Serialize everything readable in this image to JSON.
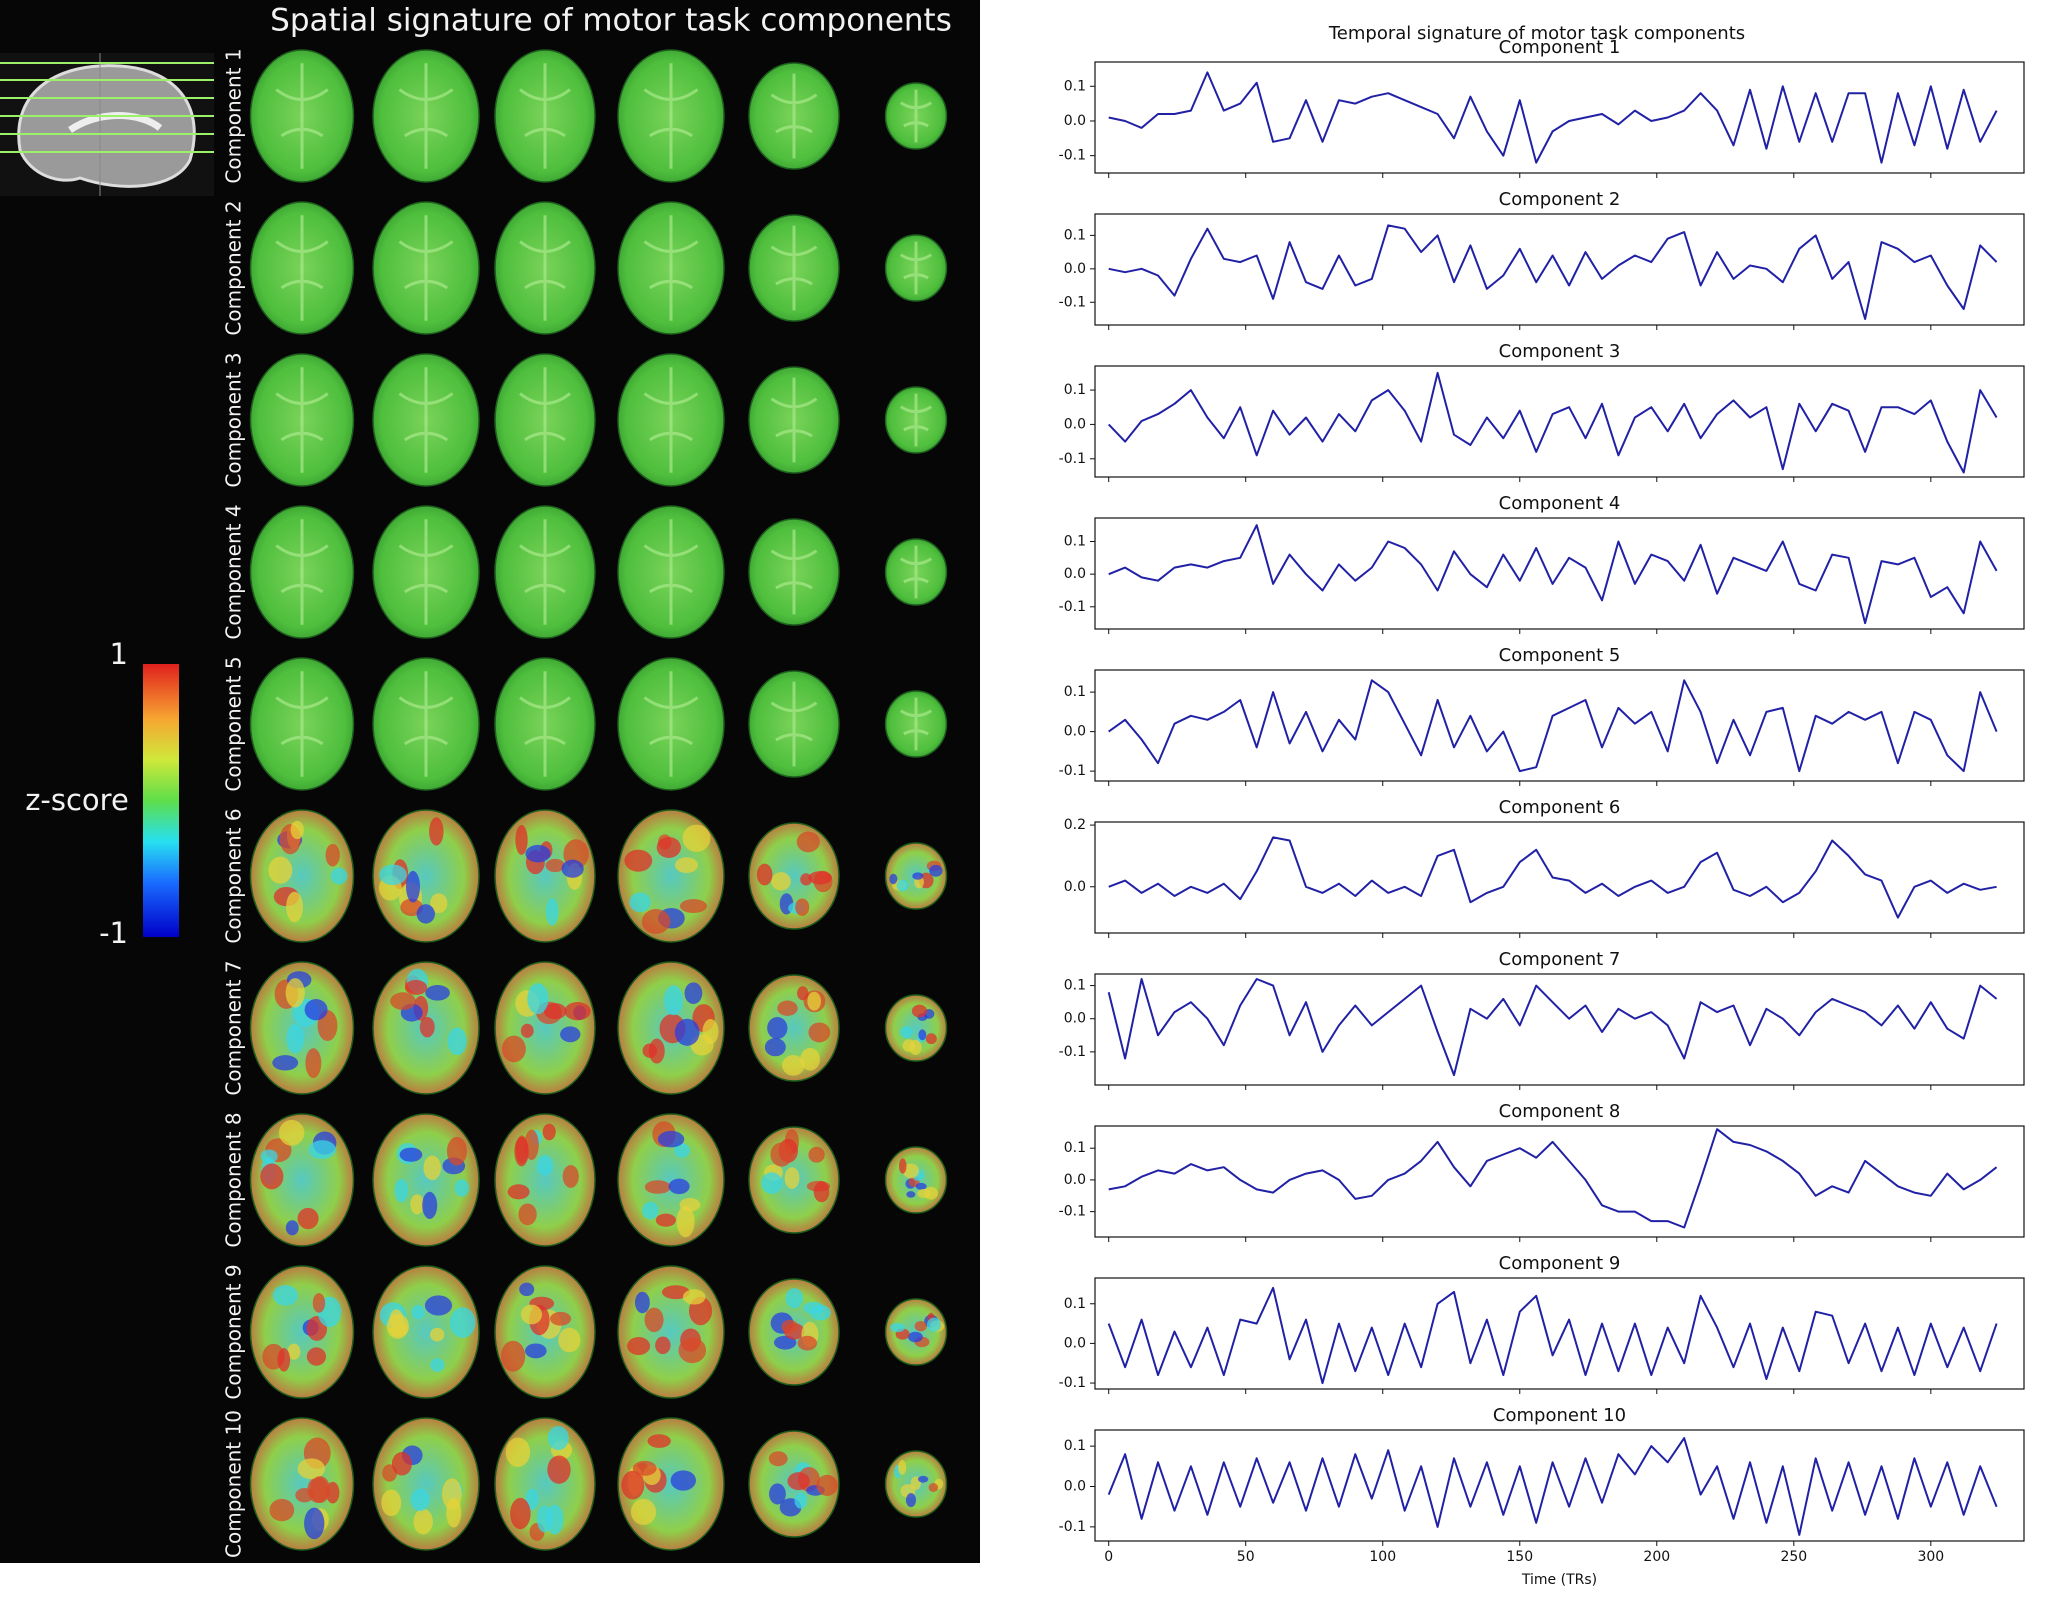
{
  "chart_data": [
    {
      "type": "image-grid",
      "title": "Spatial signature of motor task components",
      "row_labels": [
        "Component 1",
        "Component 2",
        "Component 3",
        "Component 4",
        "Component 5",
        "Component 6",
        "Component 7",
        "Component 8",
        "Component 9",
        "Component 10"
      ],
      "colorbar": {
        "label": "z-score",
        "lim": [
          -1,
          1
        ],
        "ticks": [
          1,
          -1
        ]
      }
    },
    {
      "type": "small-multiples",
      "title": "Temporal signature of motor task components",
      "xlabel": "Time (TRs)",
      "xlim": [
        -5,
        334
      ],
      "xticks": [
        0,
        50,
        100,
        150,
        200,
        250,
        300
      ],
      "x": [
        0,
        6,
        12,
        18,
        24,
        30,
        36,
        42,
        48,
        54,
        60,
        66,
        72,
        78,
        84,
        90,
        96,
        102,
        108,
        114,
        120,
        126,
        132,
        138,
        144,
        150,
        156,
        162,
        168,
        174,
        180,
        186,
        192,
        198,
        204,
        210,
        216,
        222,
        228,
        234,
        240,
        246,
        252,
        258,
        264,
        270,
        276,
        282,
        288,
        294,
        300,
        306,
        312,
        318,
        324
      ],
      "panels": [
        {
          "type": "line",
          "title": "Component 1",
          "color": "#2121a6",
          "ylim": [
            -0.15,
            0.17
          ],
          "yticks": [
            0.1,
            {
              "value": 0,
              "label": "0.0"
            },
            -0.1
          ],
          "values": [
            0.01,
            0.0,
            -0.02,
            0.02,
            0.02,
            0.03,
            0.14,
            0.03,
            0.05,
            0.11,
            -0.06,
            -0.05,
            0.06,
            -0.06,
            0.06,
            0.05,
            0.07,
            0.08,
            0.06,
            0.04,
            0.02,
            -0.05,
            0.07,
            -0.03,
            -0.1,
            0.06,
            -0.12,
            -0.03,
            0.0,
            0.01,
            0.02,
            -0.01,
            0.03,
            0.0,
            0.01,
            0.03,
            0.08,
            0.03,
            -0.07,
            0.09,
            -0.08,
            0.1,
            -0.06,
            0.08,
            -0.06,
            0.08,
            0.08,
            -0.12,
            0.08,
            -0.07,
            0.1,
            -0.08,
            0.09,
            -0.06,
            0.03
          ]
        },
        {
          "type": "line",
          "title": "Component 2",
          "color": "#2121a6",
          "ylim": [
            -0.168,
            0.164
          ],
          "yticks": [
            0.1,
            {
              "value": 0,
              "label": "0.0"
            },
            -0.1
          ],
          "values": [
            0.0,
            -0.01,
            0.0,
            -0.02,
            -0.08,
            0.03,
            0.12,
            0.03,
            0.02,
            0.04,
            -0.09,
            0.08,
            -0.04,
            -0.06,
            0.04,
            -0.05,
            -0.03,
            0.13,
            0.12,
            0.05,
            0.1,
            -0.04,
            0.07,
            -0.06,
            -0.02,
            0.06,
            -0.04,
            0.04,
            -0.05,
            0.05,
            -0.03,
            0.01,
            0.04,
            0.02,
            0.09,
            0.11,
            -0.05,
            0.05,
            -0.03,
            0.01,
            0.0,
            -0.04,
            0.06,
            0.1,
            -0.03,
            0.02,
            -0.15,
            0.08,
            0.06,
            0.02,
            0.04,
            -0.05,
            -0.12,
            0.07,
            0.02
          ]
        },
        {
          "type": "line",
          "title": "Component 3",
          "color": "#2121a6",
          "ylim": [
            -0.153,
            0.17
          ],
          "yticks": [
            0.1,
            {
              "value": 0,
              "label": "0.0"
            },
            -0.1
          ],
          "values": [
            0.0,
            -0.05,
            0.01,
            0.03,
            0.06,
            0.1,
            0.02,
            -0.04,
            0.05,
            -0.09,
            0.04,
            -0.03,
            0.02,
            -0.05,
            0.03,
            -0.02,
            0.07,
            0.1,
            0.04,
            -0.05,
            0.15,
            -0.03,
            -0.06,
            0.02,
            -0.04,
            0.04,
            -0.08,
            0.03,
            0.05,
            -0.04,
            0.06,
            -0.09,
            0.02,
            0.05,
            -0.02,
            0.06,
            -0.04,
            0.03,
            0.07,
            0.02,
            0.05,
            -0.13,
            0.06,
            -0.02,
            0.06,
            0.04,
            -0.08,
            0.05,
            0.05,
            0.03,
            0.07,
            -0.05,
            -0.14,
            0.1,
            0.02
          ]
        },
        {
          "type": "line",
          "title": "Component 4",
          "color": "#2121a6",
          "ylim": [
            -0.168,
            0.172
          ],
          "yticks": [
            0.1,
            {
              "value": 0,
              "label": "0.0"
            },
            -0.1
          ],
          "values": [
            0.0,
            0.02,
            -0.01,
            -0.02,
            0.02,
            0.03,
            0.02,
            0.04,
            0.05,
            0.15,
            -0.03,
            0.06,
            0.0,
            -0.05,
            0.03,
            -0.02,
            0.02,
            0.1,
            0.08,
            0.03,
            -0.05,
            0.07,
            0.0,
            -0.04,
            0.06,
            -0.02,
            0.08,
            -0.03,
            0.05,
            0.02,
            -0.08,
            0.1,
            -0.03,
            0.06,
            0.04,
            -0.02,
            0.09,
            -0.06,
            0.05,
            0.03,
            0.01,
            0.1,
            -0.03,
            -0.05,
            0.06,
            0.05,
            -0.15,
            0.04,
            0.03,
            0.05,
            -0.07,
            -0.04,
            -0.12,
            0.1,
            0.01
          ]
        },
        {
          "type": "line",
          "title": "Component 5",
          "color": "#2121a6",
          "ylim": [
            -0.125,
            0.156
          ],
          "yticks": [
            0.1,
            {
              "value": 0,
              "label": "0.0"
            },
            -0.1
          ],
          "values": [
            0.0,
            0.03,
            -0.02,
            -0.08,
            0.02,
            0.04,
            0.03,
            0.05,
            0.08,
            -0.04,
            0.1,
            -0.03,
            0.05,
            -0.05,
            0.03,
            -0.02,
            0.13,
            0.1,
            0.02,
            -0.06,
            0.08,
            -0.04,
            0.04,
            -0.05,
            0.0,
            -0.1,
            -0.09,
            0.04,
            0.06,
            0.08,
            -0.04,
            0.06,
            0.02,
            0.05,
            -0.05,
            0.13,
            0.05,
            -0.08,
            0.03,
            -0.06,
            0.05,
            0.06,
            -0.1,
            0.04,
            0.02,
            0.05,
            0.03,
            0.05,
            -0.08,
            0.05,
            0.03,
            -0.06,
            -0.1,
            0.1,
            0.0
          ]
        },
        {
          "type": "line",
          "title": "Component 6",
          "color": "#2121a6",
          "ylim": [
            -0.15,
            0.21
          ],
          "yticks": [
            0.2,
            {
              "value": 0,
              "label": "0.0"
            }
          ],
          "values": [
            0.0,
            0.02,
            -0.02,
            0.01,
            -0.03,
            0.0,
            -0.02,
            0.01,
            -0.04,
            0.05,
            0.16,
            0.15,
            0.0,
            -0.02,
            0.01,
            -0.03,
            0.02,
            -0.02,
            0.0,
            -0.03,
            0.1,
            0.12,
            -0.05,
            -0.02,
            0.0,
            0.08,
            0.12,
            0.03,
            0.02,
            -0.02,
            0.01,
            -0.03,
            0.0,
            0.02,
            -0.02,
            0.0,
            0.08,
            0.11,
            -0.01,
            -0.03,
            0.0,
            -0.05,
            -0.02,
            0.05,
            0.15,
            0.1,
            0.04,
            0.02,
            -0.1,
            0.0,
            0.02,
            -0.02,
            0.01,
            -0.01,
            0.0
          ]
        },
        {
          "type": "line",
          "title": "Component 7",
          "color": "#2121a6",
          "ylim": [
            -0.2,
            0.135
          ],
          "yticks": [
            0.1,
            {
              "value": 0,
              "label": "0.0"
            },
            -0.1
          ],
          "values": [
            0.08,
            -0.12,
            0.12,
            -0.05,
            0.02,
            0.05,
            0.0,
            -0.08,
            0.04,
            0.12,
            0.1,
            -0.05,
            0.05,
            -0.1,
            -0.02,
            0.04,
            -0.02,
            0.02,
            0.06,
            0.1,
            -0.04,
            -0.17,
            0.03,
            0.0,
            0.06,
            -0.02,
            0.1,
            0.05,
            0.0,
            0.04,
            -0.04,
            0.03,
            0.0,
            0.02,
            -0.02,
            -0.12,
            0.05,
            0.02,
            0.04,
            -0.08,
            0.03,
            0.0,
            -0.05,
            0.02,
            0.06,
            0.04,
            0.02,
            -0.02,
            0.04,
            -0.03,
            0.05,
            -0.03,
            -0.06,
            0.1,
            0.06
          ]
        },
        {
          "type": "line",
          "title": "Component 8",
          "color": "#2121a6",
          "ylim": [
            -0.18,
            0.17
          ],
          "yticks": [
            0.1,
            {
              "value": 0,
              "label": "0.0"
            },
            -0.1
          ],
          "values": [
            -0.03,
            -0.02,
            0.01,
            0.03,
            0.02,
            0.05,
            0.03,
            0.04,
            0.0,
            -0.03,
            -0.04,
            0.0,
            0.02,
            0.03,
            0.0,
            -0.06,
            -0.05,
            0.0,
            0.02,
            0.06,
            0.12,
            0.04,
            -0.02,
            0.06,
            0.08,
            0.1,
            0.07,
            0.12,
            0.06,
            0.0,
            -0.08,
            -0.1,
            -0.1,
            -0.13,
            -0.13,
            -0.15,
            0.0,
            0.16,
            0.12,
            0.11,
            0.09,
            0.06,
            0.02,
            -0.05,
            -0.02,
            -0.04,
            0.06,
            0.02,
            -0.02,
            -0.04,
            -0.05,
            0.02,
            -0.03,
            0.0,
            0.04
          ]
        },
        {
          "type": "line",
          "title": "Component 9",
          "color": "#2121a6",
          "ylim": [
            -0.115,
            0.165
          ],
          "yticks": [
            0.1,
            {
              "value": 0,
              "label": "0.0"
            },
            -0.1
          ],
          "values": [
            0.05,
            -0.06,
            0.06,
            -0.08,
            0.03,
            -0.06,
            0.04,
            -0.08,
            0.06,
            0.05,
            0.14,
            -0.04,
            0.06,
            -0.1,
            0.05,
            -0.07,
            0.04,
            -0.08,
            0.05,
            -0.06,
            0.1,
            0.13,
            -0.05,
            0.06,
            -0.08,
            0.08,
            0.12,
            -0.03,
            0.06,
            -0.08,
            0.05,
            -0.07,
            0.05,
            -0.08,
            0.04,
            -0.05,
            0.12,
            0.04,
            -0.06,
            0.05,
            -0.09,
            0.04,
            -0.07,
            0.08,
            0.07,
            -0.05,
            0.05,
            -0.07,
            0.04,
            -0.08,
            0.05,
            -0.06,
            0.04,
            -0.07,
            0.05
          ]
        },
        {
          "type": "line",
          "title": "Component 10",
          "color": "#2121a6",
          "ylim": [
            -0.135,
            0.14
          ],
          "yticks": [
            0.1,
            {
              "value": 0,
              "label": "0.0"
            },
            -0.1
          ],
          "values": [
            -0.02,
            0.08,
            -0.08,
            0.06,
            -0.06,
            0.05,
            -0.07,
            0.06,
            -0.05,
            0.07,
            -0.04,
            0.06,
            -0.06,
            0.07,
            -0.05,
            0.08,
            -0.03,
            0.09,
            -0.06,
            0.05,
            -0.1,
            0.07,
            -0.05,
            0.06,
            -0.07,
            0.05,
            -0.09,
            0.06,
            -0.05,
            0.07,
            -0.04,
            0.08,
            0.03,
            0.1,
            0.06,
            0.12,
            -0.02,
            0.05,
            -0.08,
            0.06,
            -0.09,
            0.05,
            -0.12,
            0.07,
            -0.06,
            0.06,
            -0.07,
            0.05,
            -0.08,
            0.07,
            -0.05,
            0.06,
            -0.07,
            0.05,
            -0.05
          ]
        }
      ]
    }
  ]
}
